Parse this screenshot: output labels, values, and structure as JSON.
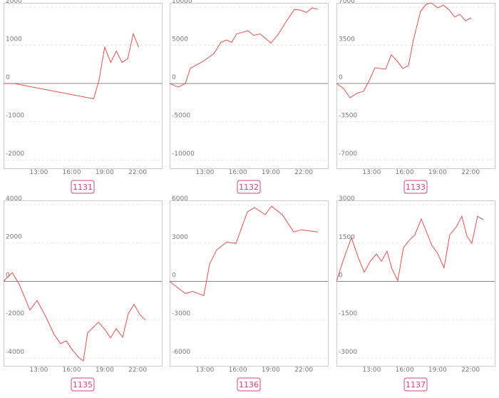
{
  "chart_data": [
    {
      "type": "line",
      "title": "1131",
      "color": "#e0524f",
      "x": [
        9.8,
        10.77,
        18.0,
        18.5,
        19.0,
        19.55,
        20.06,
        20.58,
        21.1,
        21.6,
        22.1
      ],
      "values": [
        0,
        0,
        -400,
        100,
        950,
        550,
        850,
        550,
        650,
        1300,
        950
      ],
      "xlim": [
        9.8,
        24.2
      ],
      "xticks": [
        {
          "value": 13,
          "label": "13:00"
        },
        {
          "value": 16,
          "label": "16:00"
        },
        {
          "value": 19,
          "label": "19:00"
        },
        {
          "value": 22,
          "label": "22:00"
        }
      ],
      "ylim": [
        -2220,
        2110
      ],
      "yticks": [
        -2000,
        -1000,
        0,
        1000,
        2000
      ],
      "grid": true
    },
    {
      "type": "line",
      "title": "1132",
      "color": "#e0524f",
      "x": [
        9.8,
        10.58,
        11.23,
        11.68,
        12.85,
        13.82,
        14.47,
        14.99,
        15.44,
        15.9,
        16.93,
        17.45,
        18.04,
        19.01,
        19.66,
        20.31,
        21.15,
        21.73,
        22.25,
        22.77,
        23.29
      ],
      "values": [
        0,
        -470,
        0,
        2000,
        2900,
        3900,
        5400,
        5700,
        5400,
        6500,
        6900,
        6300,
        6500,
        5300,
        6400,
        7900,
        9700,
        9600,
        9300,
        9900,
        9700
      ],
      "xlim": [
        9.8,
        24.2
      ],
      "xticks": [
        {
          "value": 13,
          "label": "13:00"
        },
        {
          "value": 16,
          "label": "16:00"
        },
        {
          "value": 19,
          "label": "19:00"
        },
        {
          "value": 22,
          "label": "22:00"
        }
      ],
      "ylim": [
        -11100,
        10560
      ],
      "yticks": [
        -10000,
        -5000,
        0,
        5000,
        10000
      ],
      "grid": true
    },
    {
      "type": "line",
      "title": "1133",
      "color": "#e0524f",
      "x": [
        9.8,
        10.45,
        11.03,
        11.62,
        12.26,
        12.78,
        13.3,
        14.27,
        14.79,
        15.31,
        15.83,
        16.35,
        16.8,
        17.45,
        17.97,
        18.43,
        19.01,
        19.53,
        20.05,
        20.57,
        21.02,
        21.54,
        22.06
      ],
      "values": [
        0,
        -460,
        -1310,
        -920,
        -720,
        260,
        1440,
        1310,
        2620,
        2090,
        1370,
        1640,
        3990,
        6610,
        7260,
        7390,
        6930,
        7190,
        6740,
        6080,
        6340,
        5750,
        6020
      ],
      "xlim": [
        9.8,
        24.2
      ],
      "xticks": [
        {
          "value": 13,
          "label": "13:00"
        },
        {
          "value": 16,
          "label": "16:00"
        },
        {
          "value": 19,
          "label": "19:00"
        },
        {
          "value": 22,
          "label": "22:00"
        }
      ],
      "ylim": [
        -7780,
        7390
      ],
      "yticks": [
        -7000,
        -3500,
        0,
        3500,
        7000
      ],
      "grid": true
    },
    {
      "type": "line",
      "title": "1135",
      "color": "#e0524f",
      "x": [
        9.8,
        10.58,
        11.23,
        12.2,
        12.85,
        13.63,
        14.4,
        14.99,
        15.51,
        16.03,
        16.61,
        17.06,
        17.45,
        18.43,
        19.01,
        19.53,
        20.05,
        20.63,
        21.15,
        21.67,
        22.19,
        22.71
      ],
      "values": [
        0,
        450,
        -150,
        -1500,
        -1000,
        -1830,
        -2770,
        -3250,
        -3100,
        -3550,
        -3960,
        -4150,
        -2690,
        -2130,
        -2500,
        -2950,
        -2470,
        -2920,
        -1680,
        -1200,
        -1720,
        -2020
      ],
      "xlim": [
        9.8,
        24.2
      ],
      "xticks": [
        {
          "value": 13,
          "label": "13:00"
        },
        {
          "value": 16,
          "label": "16:00"
        },
        {
          "value": 19,
          "label": "19:00"
        },
        {
          "value": 22,
          "label": "22:00"
        }
      ],
      "ylim": [
        -4410,
        4220
      ],
      "yticks": [
        -4000,
        -2000,
        0,
        2000,
        4000
      ],
      "grid": true
    },
    {
      "type": "line",
      "title": "1136",
      "color": "#e0524f",
      "x": [
        9.8,
        10.45,
        11.23,
        11.88,
        12.91,
        13.43,
        14.08,
        14.99,
        15.83,
        16.87,
        17.52,
        18.49,
        19.07,
        20.05,
        21.08,
        21.8,
        23.29
      ],
      "values": [
        0,
        -450,
        -950,
        -780,
        -1120,
        1350,
        2470,
        3080,
        2970,
        5440,
        5780,
        5220,
        5890,
        5220,
        3870,
        4040,
        3870
      ],
      "xlim": [
        9.8,
        24.2
      ],
      "xticks": [
        {
          "value": 13,
          "label": "13:00"
        },
        {
          "value": 16,
          "label": "16:00"
        },
        {
          "value": 19,
          "label": "19:00"
        },
        {
          "value": 22,
          "label": "22:00"
        }
      ],
      "ylim": [
        -6620,
        6340
      ],
      "yticks": [
        -6000,
        -3000,
        0,
        3000,
        6000
      ],
      "grid": true
    },
    {
      "type": "line",
      "title": "1137",
      "color": "#e0524f",
      "x": [
        9.8,
        10.45,
        11.16,
        11.81,
        12.33,
        12.91,
        13.43,
        13.89,
        14.4,
        14.86,
        15.38,
        15.9,
        16.41,
        16.93,
        17.52,
        18.49,
        19.01,
        19.59,
        20.11,
        20.7,
        21.21,
        21.67,
        22.12,
        22.64,
        23.16
      ],
      "values": [
        0,
        870,
        1710,
        900,
        360,
        810,
        1070,
        790,
        1180,
        480,
        30,
        1320,
        1600,
        1820,
        2440,
        1400,
        1090,
        530,
        1820,
        2130,
        2550,
        1770,
        1490,
        2550,
        2410
      ],
      "xlim": [
        9.8,
        24.2
      ],
      "xticks": [
        {
          "value": 13,
          "label": "13:00"
        },
        {
          "value": 16,
          "label": "16:00"
        },
        {
          "value": 19,
          "label": "19:00"
        },
        {
          "value": 22,
          "label": "22:00"
        }
      ],
      "ylim": [
        -3310,
        3170
      ],
      "yticks": [
        -3000,
        -1500,
        0,
        1500,
        3000
      ],
      "grid": true
    }
  ]
}
